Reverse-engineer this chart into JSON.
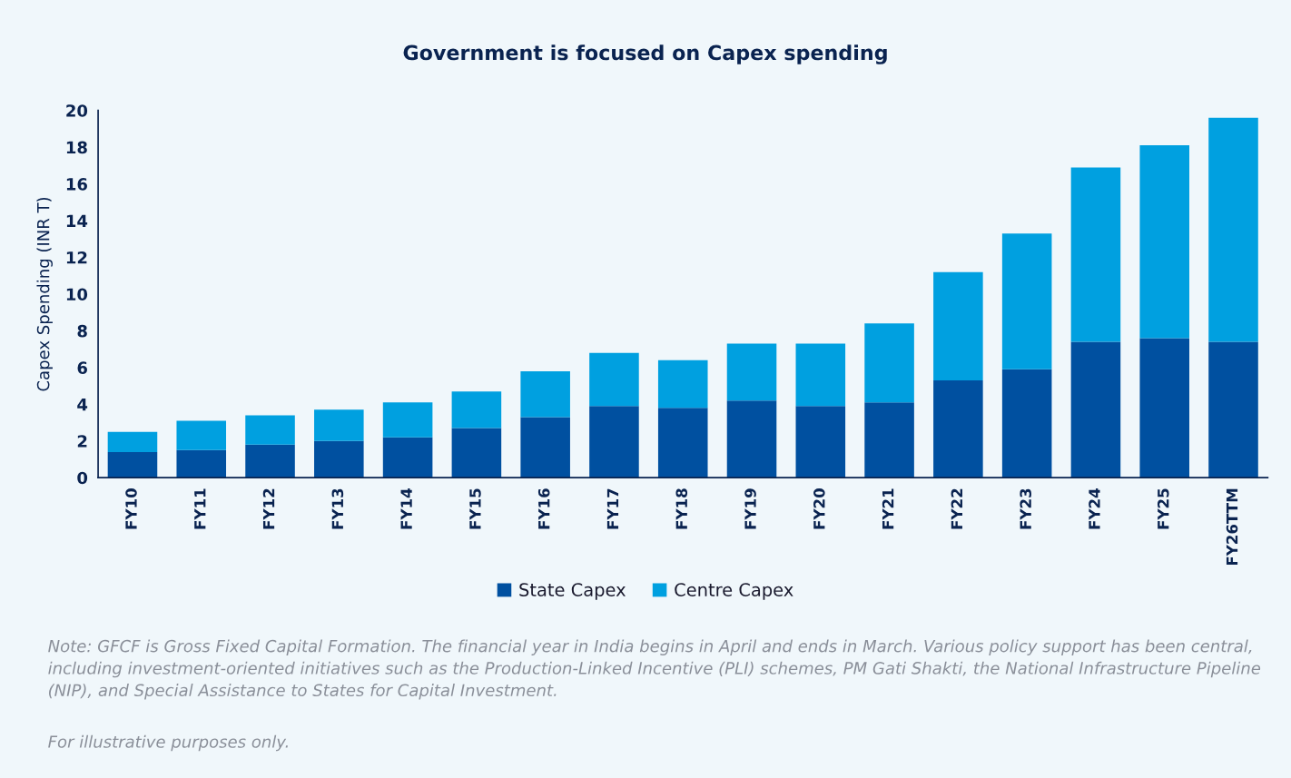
{
  "chart_data": {
    "type": "bar",
    "title": "Government is focused on Capex spending",
    "ylabel": "Capex Spending (INR T)",
    "categories": [
      "FY10",
      "FY11",
      "FY12",
      "FY13",
      "FY14",
      "FY15",
      "FY16",
      "FY17",
      "FY18",
      "FY19",
      "FY20",
      "FY21",
      "FY22",
      "FY23",
      "FY24",
      "FY25",
      "FY26TTM"
    ],
    "series": [
      {
        "name": "State Capex",
        "color": "#0050a0",
        "values": [
          1.4,
          1.5,
          1.8,
          2.0,
          2.2,
          2.7,
          3.3,
          3.9,
          3.8,
          4.2,
          3.9,
          4.1,
          5.3,
          5.9,
          7.4,
          7.6,
          7.4
        ]
      },
      {
        "name": "Centre Capex",
        "color": "#00a0e0",
        "values": [
          1.1,
          1.6,
          1.6,
          1.7,
          1.9,
          2.0,
          2.5,
          2.9,
          2.6,
          3.1,
          3.4,
          4.3,
          5.9,
          7.4,
          9.5,
          10.5,
          12.2
        ]
      }
    ],
    "stacked": true,
    "ylim": [
      0,
      20
    ],
    "yticks": [
      0,
      2,
      4,
      6,
      8,
      10,
      12,
      14,
      16,
      18,
      20
    ],
    "grid": false,
    "legend": "bottom",
    "annotations": [
      "Note: GFCF is Gross Fixed Capital Formation. The financial year in India begins in April and ends in March. Various policy support has been central, including investment-oriented initiatives such as the Production-Linked Incentive (PLI) schemes, PM Gati Shakti, the National Infrastructure Pipeline (NIP), and Special Assistance to States for Capital Investment.",
      "For illustrative purposes only."
    ]
  }
}
